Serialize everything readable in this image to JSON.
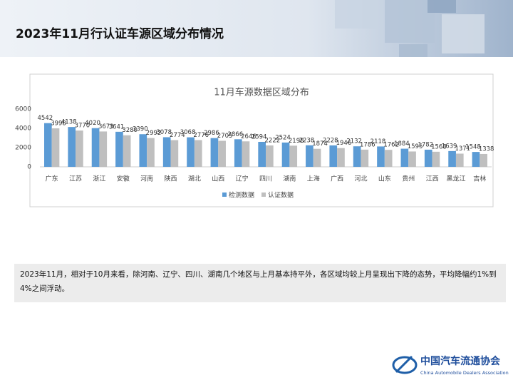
{
  "header": {
    "title": "2023年11月行认证车源区域分布情况"
  },
  "chart_data": {
    "type": "bar",
    "title": "11月车源数据区域分布",
    "categories": [
      "广东",
      "江苏",
      "浙江",
      "安徽",
      "河南",
      "陕西",
      "湖北",
      "山西",
      "辽宁",
      "四川",
      "湖南",
      "上海",
      "广西",
      "河北",
      "山东",
      "贵州",
      "江西",
      "黑龙江",
      "吉林"
    ],
    "series": [
      {
        "name": "检测数据",
        "color": "#5b9bd5",
        "values": [
          4542,
          4138,
          4020,
          3641,
          3390,
          3078,
          3068,
          2986,
          2866,
          2594,
          2524,
          2238,
          2228,
          2132,
          2118,
          1884,
          1782,
          1639,
          1548
        ]
      },
      {
        "name": "认证数据",
        "color": "#bfbfbf",
        "values": [
          3998,
          3770,
          3673,
          3280,
          2992,
          2774,
          2776,
          2705,
          2646,
          2222,
          2198,
          1874,
          1946,
          1786,
          1762,
          1595,
          1568,
          1371,
          1338
        ]
      }
    ],
    "ylim": [
      0,
      6000
    ],
    "yticks": [
      0,
      2000,
      4000,
      6000
    ],
    "grid": false,
    "legend": "bottom"
  },
  "note": "2023年11月，相对于10月来看，除河南、辽宁、四川、湖南几个地区与上月基本持平外，各区域均较上月呈现出下降的态势，平均降幅约1%到4%之间浮动。",
  "footer": {
    "org_cn": "中国汽车流通协会",
    "org_en": "China Automobile Dealers Association"
  }
}
